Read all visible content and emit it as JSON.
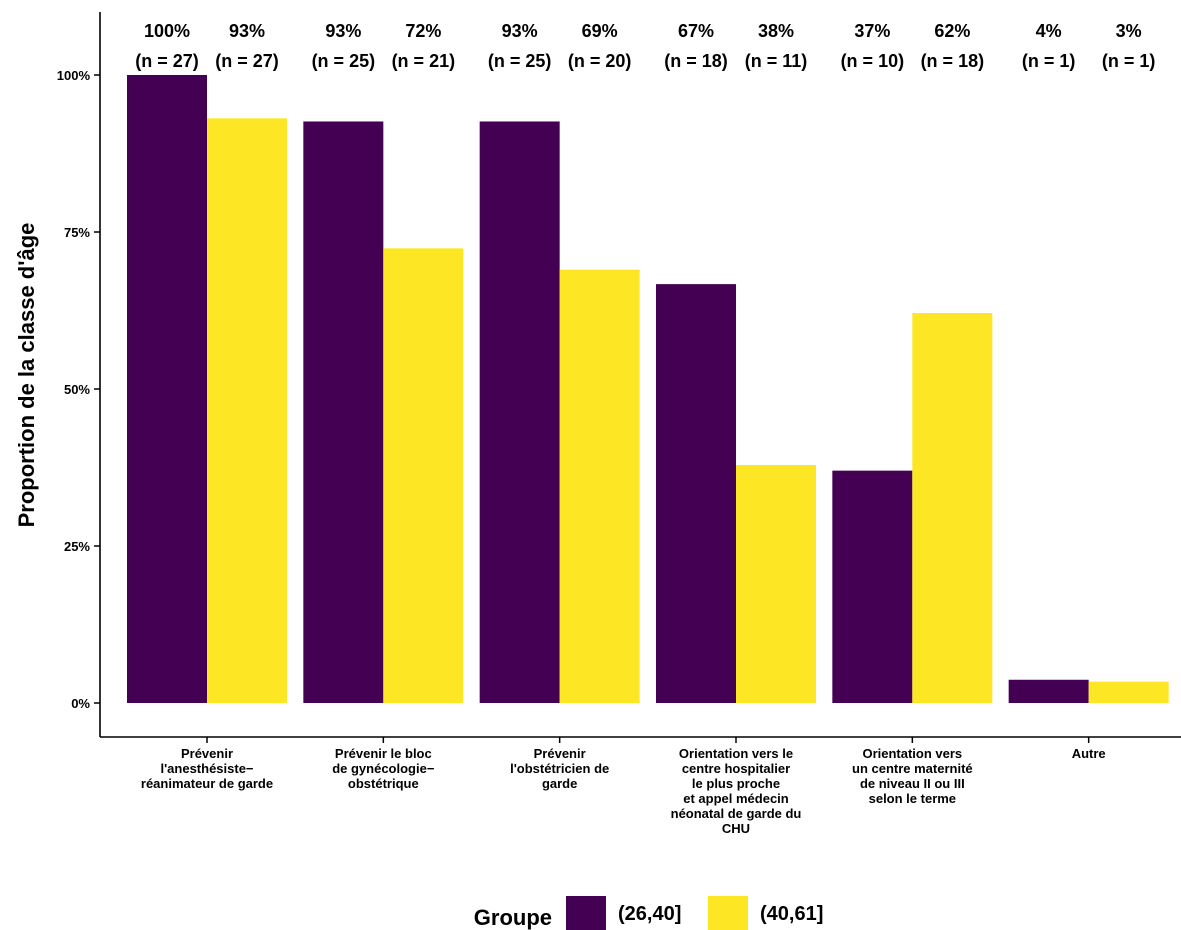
{
  "chart_data": {
    "type": "bar",
    "ylabel": "Proportion de la classe d'âge",
    "xlabel": "",
    "ylim": [
      0,
      1.04
    ],
    "y_ticks": [
      0,
      0.25,
      0.5,
      0.75,
      1.0
    ],
    "y_tick_labels": [
      "0%",
      "25%",
      "50%",
      "75%",
      "100%"
    ],
    "categories": [
      [
        "Prévenir",
        "l'anesthésiste−",
        "réanimateur de garde"
      ],
      [
        "Prévenir le bloc",
        "de gynécologie−",
        "obstétrique"
      ],
      [
        "Prévenir",
        "l'obstétricien de",
        "garde"
      ],
      [
        "Orientation vers le",
        "centre hospitalier",
        "le plus proche",
        "et appel médecin",
        "néonatal de garde du",
        "CHU"
      ],
      [
        "Orientation vers",
        "un centre maternité",
        "de niveau II ou III",
        "selon le terme"
      ],
      [
        "Autre"
      ]
    ],
    "series": [
      {
        "name": "(26,40]",
        "color": "#440154",
        "values": [
          1.0,
          0.926,
          0.926,
          0.667,
          0.37,
          0.037
        ],
        "pct_labels": [
          "100%",
          "93%",
          "93%",
          "67%",
          "37%",
          "4%"
        ],
        "n_labels": [
          "(n = 27)",
          "(n = 25)",
          "(n = 25)",
          "(n = 18)",
          "(n = 10)",
          "(n = 1)"
        ]
      },
      {
        "name": "(40,61]",
        "color": "#FDE725",
        "values": [
          0.931,
          0.724,
          0.69,
          0.379,
          0.621,
          0.034
        ],
        "pct_labels": [
          "93%",
          "72%",
          "69%",
          "38%",
          "62%",
          "3%"
        ],
        "n_labels": [
          "(n = 27)",
          "(n = 21)",
          "(n = 20)",
          "(n = 11)",
          "(n = 18)",
          "(n = 1)"
        ]
      }
    ],
    "legend": {
      "title": "Groupe",
      "position": "bottom"
    },
    "grid": false
  }
}
